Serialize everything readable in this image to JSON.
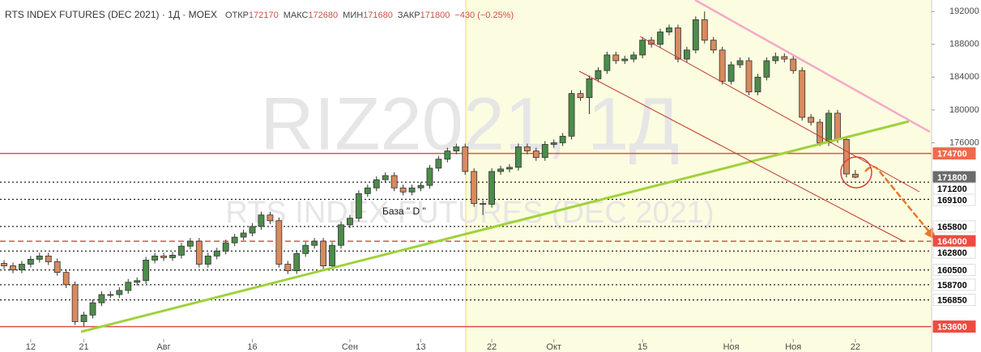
{
  "chart_data": {
    "type": "candlestick",
    "title": "RTS INDEX FUTURES (DEC 2021) · 1Д · MOEX",
    "ohlc_labels": [
      {
        "label": "ОТКР",
        "value": 172170
      },
      {
        "label": "МАКС",
        "value": 172680
      },
      {
        "label": "МИН",
        "value": 171680
      },
      {
        "label": "ЗАКР",
        "value": 171800
      }
    ],
    "change": "−430 (−0.25%)",
    "watermark": [
      "RIZ2021, 1Д",
      "RTS INDEX FUTURES (DEC 2021)"
    ],
    "annotation": "База \" D \"",
    "up_color": "#4c8c4a",
    "down_color": "#d98a5e",
    "open": [
      161300,
      161000,
      160500,
      161200,
      161800,
      162200,
      161500,
      160200,
      158700,
      154200,
      155000,
      156500,
      157500,
      157500,
      158000,
      159000,
      159200,
      161700,
      162200,
      162000,
      162300,
      163400,
      164000,
      161200,
      162200,
      162800,
      163800,
      164500,
      165000,
      165800,
      167200,
      166500,
      161200,
      160400,
      162500,
      163500,
      164000,
      161000,
      163500,
      166000,
      166800,
      169800,
      170500,
      171500,
      172000,
      170500,
      170000,
      170500,
      170800,
      172900,
      174000,
      175000,
      175500,
      172500,
      168600,
      168500,
      172500,
      172800,
      173000,
      175500,
      175000,
      174200,
      175800,
      176000,
      176800,
      182000,
      181500,
      183800,
      184800,
      186700,
      186000,
      186200,
      186700,
      188500,
      188000,
      189500,
      190000,
      186200,
      187300,
      191000,
      188500,
      187300,
      183500,
      185500,
      186000,
      182200,
      184000,
      186000,
      186500,
      186200,
      184800,
      179100,
      178500,
      176000,
      179600,
      176400,
      172170
    ],
    "high": [
      161700,
      161400,
      161600,
      162200,
      162600,
      162600,
      161900,
      160600,
      159100,
      155400,
      156900,
      157900,
      157900,
      158400,
      159400,
      159600,
      162100,
      162600,
      162600,
      162700,
      163800,
      164400,
      164400,
      162600,
      163200,
      164200,
      164900,
      165400,
      166200,
      167600,
      167600,
      166900,
      161600,
      162900,
      163900,
      164400,
      164400,
      163900,
      166400,
      167200,
      170200,
      170900,
      171900,
      172400,
      172400,
      170900,
      170900,
      171200,
      173300,
      174400,
      175400,
      175900,
      175900,
      172900,
      169000,
      172900,
      173200,
      173400,
      175900,
      175900,
      175400,
      176200,
      176400,
      177200,
      182400,
      182400,
      184200,
      185200,
      187100,
      187100,
      186600,
      187100,
      188900,
      188900,
      189900,
      190400,
      190400,
      187700,
      191400,
      192000,
      188900,
      187700,
      185900,
      186400,
      186400,
      184400,
      186400,
      187000,
      186900,
      186600,
      185200,
      179500,
      178900,
      180000,
      180000,
      176800,
      172680
    ],
    "low": [
      160600,
      160100,
      160100,
      160800,
      161400,
      161100,
      159800,
      158300,
      153800,
      153600,
      154600,
      156100,
      157100,
      157100,
      157600,
      158600,
      158800,
      161300,
      161600,
      161600,
      161900,
      163000,
      160800,
      160800,
      161800,
      162400,
      163400,
      164100,
      164600,
      165400,
      166100,
      160800,
      160000,
      160000,
      162100,
      163100,
      160600,
      160600,
      163100,
      165600,
      166400,
      169400,
      170100,
      171100,
      170100,
      169600,
      169600,
      170100,
      170400,
      172500,
      173600,
      174600,
      172100,
      168200,
      167200,
      168100,
      172100,
      172400,
      172600,
      174600,
      173800,
      173800,
      175400,
      175600,
      176400,
      181100,
      179500,
      183400,
      184400,
      185600,
      185600,
      185800,
      186300,
      187600,
      187600,
      189100,
      185800,
      185800,
      186900,
      188100,
      186900,
      183100,
      183100,
      185100,
      181800,
      181800,
      183600,
      185600,
      185800,
      184400,
      178700,
      178100,
      175600,
      175600,
      176000,
      171800,
      171680
    ],
    "close": [
      161000,
      160500,
      161200,
      161800,
      162200,
      161500,
      160200,
      158700,
      154200,
      155000,
      156500,
      157500,
      157500,
      158000,
      159000,
      159200,
      161700,
      162200,
      162000,
      162300,
      163400,
      164000,
      161200,
      162200,
      162800,
      163800,
      164500,
      165000,
      165800,
      167200,
      166500,
      161200,
      160400,
      162500,
      163500,
      164000,
      161000,
      163500,
      166000,
      166800,
      169800,
      170500,
      171500,
      172000,
      170500,
      170000,
      170500,
      170800,
      172900,
      174000,
      175000,
      175500,
      172500,
      168600,
      168500,
      172500,
      172800,
      173000,
      175500,
      175000,
      174200,
      175800,
      176000,
      176800,
      182000,
      181500,
      183800,
      184800,
      186700,
      186000,
      186200,
      186700,
      188500,
      188000,
      189500,
      190000,
      186200,
      187300,
      191000,
      188500,
      187300,
      183500,
      185500,
      186000,
      182200,
      184000,
      186000,
      186500,
      186200,
      184800,
      179100,
      178500,
      176000,
      179600,
      176400,
      172200,
      171800
    ],
    "xlim": [
      -0.46,
      104.6
    ],
    "xticks": [
      {
        "value": 3,
        "label": "12"
      },
      {
        "value": 9,
        "label": "21"
      },
      {
        "value": 18,
        "label": "Авг"
      },
      {
        "value": 28,
        "label": "16"
      },
      {
        "value": 39,
        "label": "Сен"
      },
      {
        "value": 47,
        "label": "13"
      },
      {
        "value": 55,
        "label": "22"
      },
      {
        "value": 62,
        "label": "Окт"
      },
      {
        "value": 72,
        "label": "15"
      },
      {
        "value": 82,
        "label": "Ноя"
      },
      {
        "value": 89,
        "label": "Ноя"
      },
      {
        "value": 96,
        "label": "22"
      }
    ],
    "ylim": [
      150500,
      193400
    ],
    "yticks": [
      192000,
      188000,
      184000,
      180000,
      176000
    ],
    "levels": [
      {
        "value": 174700,
        "line": "solid",
        "color": "#e0504a",
        "label_bg": "#ef6a4c",
        "label_color": "#ffffff"
      },
      {
        "value": 171800,
        "line": "none",
        "color": "#555555",
        "label_bg": "#6b6b6b",
        "label_color": "#ffffff"
      },
      {
        "value": 171200,
        "line": "dotted",
        "color": "#222222",
        "label_bg": "#ffffff",
        "label_color": "#000000"
      },
      {
        "value": 169100,
        "line": "dotted",
        "color": "#222222",
        "label_bg": "#ffffff",
        "label_color": "#000000"
      },
      {
        "value": 165800,
        "line": "dotted",
        "color": "#222222",
        "label_bg": "#ffffff",
        "label_color": "#000000"
      },
      {
        "value": 164000,
        "line": "dashed",
        "color": "#e0504a",
        "label_bg": "#f04a3e",
        "label_color": "#ffffff"
      },
      {
        "value": 162800,
        "line": "dotted",
        "color": "#222222",
        "label_bg": "#ffffff",
        "label_color": "#000000"
      },
      {
        "value": 160500,
        "line": "dotted",
        "color": "#222222",
        "label_bg": "#ffffff",
        "label_color": "#000000"
      },
      {
        "value": 158700,
        "line": "dotted",
        "color": "#222222",
        "label_bg": "#ffffff",
        "label_color": "#000000"
      },
      {
        "value": 156850,
        "line": "dotted",
        "color": "#222222",
        "label_bg": "#ffffff",
        "label_color": "#000000"
      },
      {
        "value": 153600,
        "line": "solid",
        "color": "#e0504a",
        "label_bg": "#f04a3e",
        "label_color": "#ffffff"
      }
    ]
  }
}
